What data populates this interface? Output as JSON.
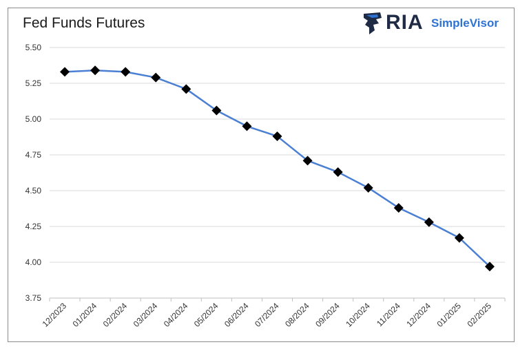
{
  "chart_data": {
    "type": "line",
    "title": "Fed Funds Futures",
    "categories": [
      "12/2023",
      "01/2024",
      "02/2024",
      "03/2024",
      "04/2024",
      "05/2024",
      "06/2024",
      "07/2024",
      "08/2024",
      "09/2024",
      "10/2024",
      "11/2024",
      "12/2024",
      "01/2025",
      "02/2025"
    ],
    "series": [
      {
        "values": [
          5.33,
          5.34,
          5.33,
          5.29,
          5.21,
          5.06,
          4.95,
          4.88,
          4.71,
          4.63,
          4.52,
          4.38,
          4.28,
          4.17,
          3.97
        ]
      }
    ],
    "yticks": [
      "5.50",
      "5.25",
      "5.00",
      "4.75",
      "4.50",
      "4.25",
      "4.00",
      "3.75"
    ],
    "ylim": [
      3.75,
      5.5
    ],
    "xlabel": "",
    "ylabel": "",
    "grid": true,
    "marker": "diamond",
    "line_color": "#4a7fd4",
    "marker_color": "#000000"
  },
  "logo": {
    "ria": "RIA",
    "simplevisor": "SimpleVisor",
    "brand_color": "#2e72d2",
    "dark_color": "#1f2a44"
  }
}
